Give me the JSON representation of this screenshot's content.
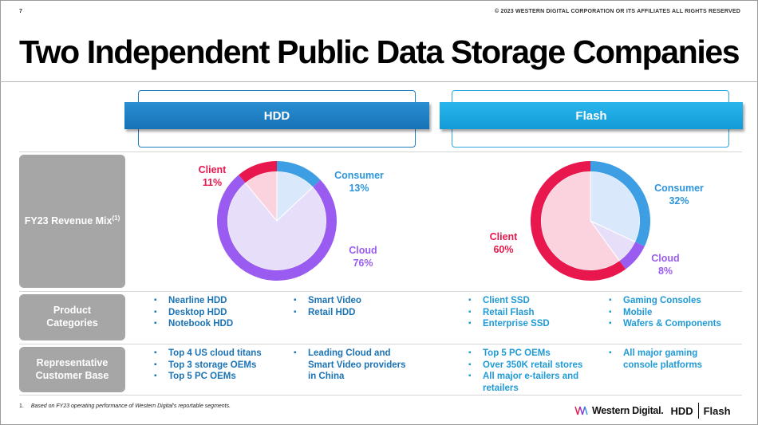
{
  "header": {
    "page_number": "7",
    "copyright": "© 2023 WESTERN DIGITAL CORPORATION OR ITS AFFILIATES  ALL RIGHTS RESERVED",
    "title": "Two Independent Public Data Storage Companies"
  },
  "columns": {
    "hdd": "HDD",
    "flash": "Flash"
  },
  "rows": {
    "revenue_mix": {
      "label": "FY23 Revenue Mix",
      "sup": "(1)"
    },
    "product_categories": {
      "label_line1": "Product",
      "label_line2": "Categories"
    },
    "customer_base": {
      "label_line1": "Representative",
      "label_line2": "Customer Base"
    }
  },
  "product_categories": {
    "hdd_col1": [
      "Nearline HDD",
      "Desktop HDD",
      "Notebook HDD"
    ],
    "hdd_col2": [
      "Smart Video",
      "Retail HDD"
    ],
    "flash_col1": [
      "Client SSD",
      "Retail Flash",
      "Enterprise SSD"
    ],
    "flash_col2": [
      "Gaming Consoles",
      "Mobile",
      "Wafers & Components"
    ]
  },
  "customer_base": {
    "hdd_col1": [
      "Top 4 US cloud titans",
      "Top 3 storage OEMs",
      "Top 5 PC OEMs"
    ],
    "hdd_col2": [
      "Leading Cloud and Smart Video providers in China"
    ],
    "flash_col1": [
      "Top 5 PC OEMs",
      "Over 350K retail stores",
      "All major e-tailers and retailers"
    ],
    "flash_col2": [
      "All major gaming console platforms"
    ]
  },
  "footnote": {
    "num": "1.",
    "text": "Based on FY23 operating performance of Western Digital's reportable segments."
  },
  "logo": {
    "company": "Western Digital.",
    "brand1": "HDD",
    "brand2": "Flash"
  },
  "colors": {
    "consumer": "#3d9ee4",
    "cloud": "#9a5cf0",
    "client": "#e8174d",
    "consumer_fill": "#d9e9fb",
    "cloud_fill": "#e7dffa",
    "client_fill": "#fad3de",
    "hdd_band": "#1f80c6",
    "flash_band": "#21a9e4"
  },
  "chart_data": [
    {
      "type": "pie",
      "title": "HDD",
      "categories": [
        "Consumer",
        "Cloud",
        "Client"
      ],
      "values": [
        13,
        76,
        11
      ],
      "value_labels": [
        "13%",
        "76%",
        "11%"
      ]
    },
    {
      "type": "pie",
      "title": "Flash",
      "categories": [
        "Consumer",
        "Cloud",
        "Client"
      ],
      "values": [
        32,
        8,
        60
      ],
      "value_labels": [
        "32%",
        "8%",
        "60%"
      ]
    }
  ]
}
